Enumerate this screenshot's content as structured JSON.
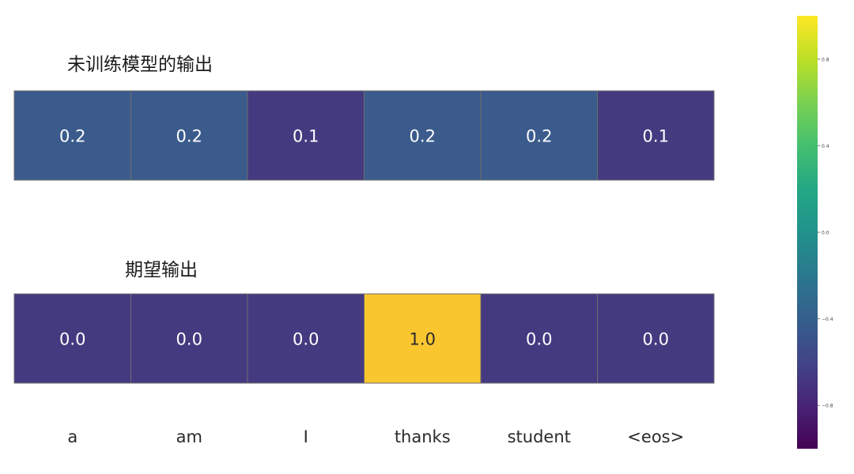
{
  "chart_data": {
    "type": "heatmap",
    "categories": [
      "a",
      "am",
      "I",
      "thanks",
      "student",
      "<eos>"
    ],
    "rows": [
      {
        "label": "未训练模型的输出",
        "values": [
          0.2,
          0.2,
          0.1,
          0.2,
          0.2,
          0.1
        ],
        "cell_labels": [
          "0.2",
          "0.2",
          "0.1",
          "0.2",
          "0.2",
          "0.1"
        ]
      },
      {
        "label": "期望输出",
        "values": [
          0.0,
          0.0,
          0.0,
          1.0,
          0.0,
          0.0
        ],
        "cell_labels": [
          "0.0",
          "0.0",
          "0.0",
          "1.0",
          "0.0",
          "0.0"
        ]
      }
    ],
    "colorbar": {
      "colormap": "viridis",
      "range": [
        -1,
        1
      ],
      "ticks": [
        0.8,
        0.4,
        0.0,
        -0.4,
        -0.8
      ],
      "tick_labels": [
        "0.8",
        "0.4",
        "0.0",
        "−0.4",
        "−0.8"
      ]
    },
    "colors": {
      "cell_0.2": "#3b5b8c",
      "cell_0.1": "#433a7f",
      "cell_0.0": "#443a80",
      "cell_1.0": "#fac62f",
      "cell_border": "#6e6e6e",
      "cell_text_dark_bg": "#ffffff",
      "cell_text_light_bg": "#2a2a2a"
    }
  }
}
